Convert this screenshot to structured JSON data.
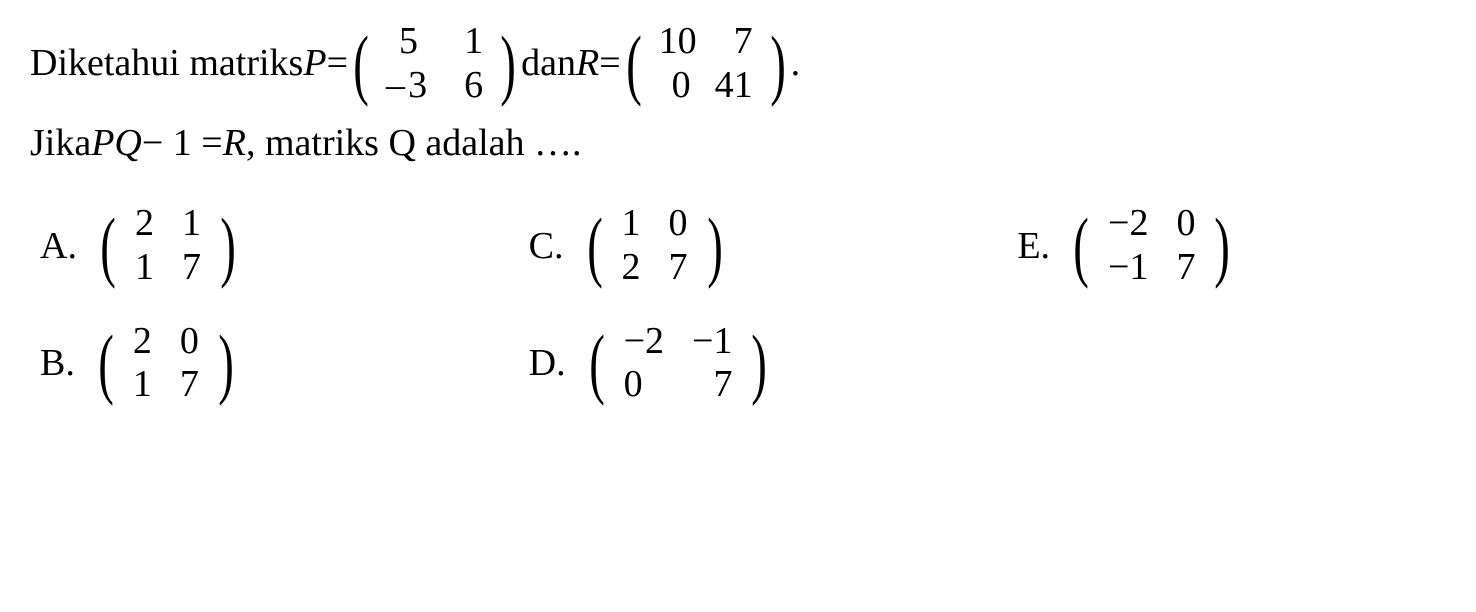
{
  "question": {
    "prefix": "Diketahui matriks ",
    "P_var": "P",
    "eq": " = ",
    "P_matrix": {
      "r1c1": "5",
      "r1c2": "1",
      "r2c1": "– 3",
      "r2c2": "6"
    },
    "conj": " dan ",
    "R_var": "R",
    "R_matrix": {
      "r1c1": "10",
      "r1c2": "7",
      "r2c1": "0",
      "r2c2": "41"
    },
    "period": ".",
    "line2_prefix": "Jika ",
    "expr_PQ": "PQ",
    "expr_minus": " − 1 = ",
    "expr_R": "R",
    "line2_suffix": ", matriks Q adalah …."
  },
  "options": {
    "A": {
      "label": "A.",
      "r1c1": "2",
      "r1c2": "1",
      "r2c1": "1",
      "r2c2": "7"
    },
    "C": {
      "label": "C.",
      "r1c1": "1",
      "r1c2": "0",
      "r2c1": "2",
      "r2c2": "7"
    },
    "E": {
      "label": "E.",
      "r1c1": "−2",
      "r1c2": "0",
      "r2c1": "−1",
      "r2c2": "7"
    },
    "B": {
      "label": "B.",
      "r1c1": "2",
      "r1c2": "0",
      "r2c1": "1",
      "r2c2": "7"
    },
    "D": {
      "label": "D.",
      "r1c1": "−2",
      "r1c2": "−1",
      "r2c1": "0",
      "r2c2": "7"
    }
  },
  "colors": {
    "text": "#000000",
    "background": "#ffffff"
  },
  "typography": {
    "body_fontsize_pt": 29,
    "font_family": "Times New Roman"
  }
}
